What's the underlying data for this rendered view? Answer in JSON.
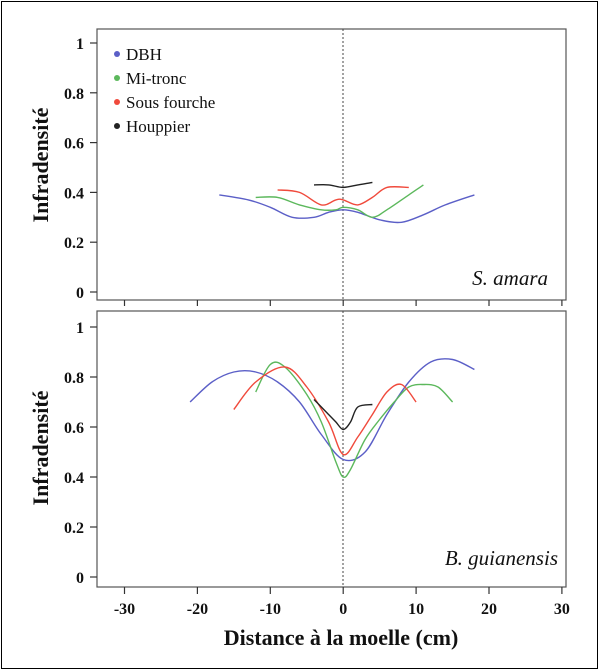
{
  "chart_data": {
    "type": "line",
    "xlabel": "Distance à la moelle (cm)",
    "xlim": [
      -30,
      30
    ],
    "x_ticks": [
      "-30",
      "-20",
      "-10",
      "0",
      "10",
      "20",
      "30"
    ],
    "y_ticks": [
      "0",
      "0.2",
      "0.4",
      "0.6",
      "0.8",
      "1"
    ],
    "legend": {
      "placement": "top-left",
      "entries": [
        {
          "label": "DBH",
          "color": "#5b5fc7"
        },
        {
          "label": "Mi-tronc",
          "color": "#5cb85c"
        },
        {
          "label": "Sous fourche",
          "color": "#f04a3c"
        },
        {
          "label": "Houppier",
          "color": "#222222"
        }
      ]
    },
    "panels": [
      {
        "species": "S. amara",
        "ylabel": "Infradensité",
        "ylim": [
          0,
          1
        ],
        "series": [
          {
            "name": "DBH",
            "color": "#5b5fc7",
            "x": [
              -17,
              -13,
              -10,
              -7,
              -4,
              -2,
              0,
              2,
              5,
              8,
              11,
              14,
              18
            ],
            "y": [
              0.39,
              0.37,
              0.34,
              0.3,
              0.3,
              0.32,
              0.33,
              0.32,
              0.29,
              0.28,
              0.31,
              0.35,
              0.39
            ]
          },
          {
            "name": "Mi-tronc",
            "color": "#5cb85c",
            "x": [
              -12,
              -9,
              -6,
              -3,
              -1,
              0,
              2,
              4,
              6,
              9,
              11
            ],
            "y": [
              0.38,
              0.38,
              0.35,
              0.33,
              0.33,
              0.34,
              0.33,
              0.3,
              0.33,
              0.39,
              0.43
            ]
          },
          {
            "name": "Sous fourche",
            "color": "#f04a3c",
            "x": [
              -9,
              -6,
              -3,
              -1,
              0,
              2,
              4,
              6,
              9
            ],
            "y": [
              0.41,
              0.4,
              0.35,
              0.37,
              0.37,
              0.35,
              0.38,
              0.42,
              0.42
            ]
          },
          {
            "name": "Houppier",
            "color": "#222222",
            "x": [
              -4,
              -2,
              0,
              2,
              4
            ],
            "y": [
              0.43,
              0.43,
              0.42,
              0.43,
              0.44
            ]
          }
        ]
      },
      {
        "species": "B. guianensis",
        "ylabel": "Infradensité",
        "ylim": [
          0,
          1
        ],
        "series": [
          {
            "name": "DBH",
            "color": "#5b5fc7",
            "x": [
              -21,
              -18,
              -15,
              -12,
              -9,
              -6,
              -3,
              0,
              3,
              6,
              9,
              12,
              15,
              18
            ],
            "y": [
              0.7,
              0.78,
              0.82,
              0.82,
              0.78,
              0.7,
              0.57,
              0.47,
              0.5,
              0.65,
              0.78,
              0.86,
              0.87,
              0.83
            ]
          },
          {
            "name": "Mi-tronc",
            "color": "#5cb85c",
            "x": [
              -12,
              -10,
              -8,
              -5,
              -3,
              -1,
              0,
              1,
              3,
              5,
              7,
              9,
              11,
              13,
              15
            ],
            "y": [
              0.74,
              0.85,
              0.84,
              0.73,
              0.62,
              0.46,
              0.4,
              0.43,
              0.55,
              0.63,
              0.7,
              0.76,
              0.77,
              0.76,
              0.7
            ]
          },
          {
            "name": "Sous fourche",
            "color": "#f04a3c",
            "x": [
              -15,
              -12,
              -8,
              -5,
              -2,
              0,
              2,
              4,
              6,
              8,
              10
            ],
            "y": [
              0.67,
              0.78,
              0.84,
              0.76,
              0.62,
              0.49,
              0.56,
              0.65,
              0.74,
              0.77,
              0.7
            ]
          },
          {
            "name": "Houppier",
            "color": "#222222",
            "x": [
              -4,
              -2,
              -1,
              0,
              1,
              2,
              4
            ],
            "y": [
              0.71,
              0.65,
              0.62,
              0.59,
              0.62,
              0.68,
              0.69
            ]
          }
        ]
      }
    ]
  }
}
